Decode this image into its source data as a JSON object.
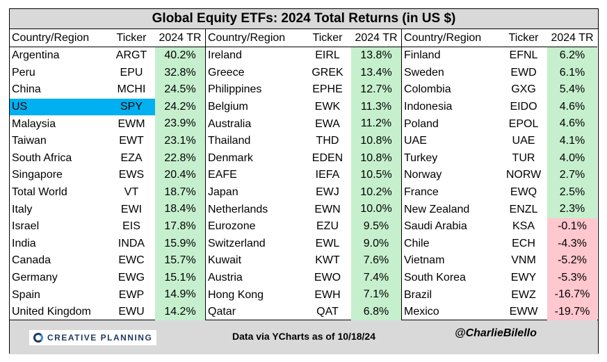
{
  "title": "Global Equity ETFs: 2024 Total Returns (in US $)",
  "headers": {
    "country": "Country/Region",
    "ticker": "Ticker",
    "tr": "2024 TR"
  },
  "colors": {
    "positive_fill": "#c6efce",
    "negative_fill": "#ffc7ce",
    "highlight": "#00b0f0",
    "header_fill": "#d9d9d9"
  },
  "highlight_ticker": "SPY",
  "chart_data": {
    "type": "table",
    "title": "Global Equity ETFs: 2024 Total Returns (in US $)",
    "columns": [
      "Country/Region",
      "Ticker",
      "2024 TR"
    ],
    "panels": [
      [
        {
          "country": "Argentina",
          "ticker": "ARGT",
          "tr": "40.2%"
        },
        {
          "country": "Peru",
          "ticker": "EPU",
          "tr": "32.8%"
        },
        {
          "country": "China",
          "ticker": "MCHI",
          "tr": "24.5%"
        },
        {
          "country": "US",
          "ticker": "SPY",
          "tr": "24.2%"
        },
        {
          "country": "Malaysia",
          "ticker": "EWM",
          "tr": "23.9%"
        },
        {
          "country": "Taiwan",
          "ticker": "EWT",
          "tr": "23.1%"
        },
        {
          "country": "South Africa",
          "ticker": "EZA",
          "tr": "22.8%"
        },
        {
          "country": "Singapore",
          "ticker": "EWS",
          "tr": "20.4%"
        },
        {
          "country": "Total World",
          "ticker": "VT",
          "tr": "18.7%"
        },
        {
          "country": "Italy",
          "ticker": "EWI",
          "tr": "18.4%"
        },
        {
          "country": "Israel",
          "ticker": "EIS",
          "tr": "17.8%"
        },
        {
          "country": "India",
          "ticker": "INDA",
          "tr": "15.9%"
        },
        {
          "country": "Canada",
          "ticker": "EWC",
          "tr": "15.7%"
        },
        {
          "country": "Germany",
          "ticker": "EWG",
          "tr": "15.1%"
        },
        {
          "country": "Spain",
          "ticker": "EWP",
          "tr": "14.9%"
        },
        {
          "country": "United Kingdom",
          "ticker": "EWU",
          "tr": "14.2%"
        }
      ],
      [
        {
          "country": "Ireland",
          "ticker": "EIRL",
          "tr": "13.8%"
        },
        {
          "country": "Greece",
          "ticker": "GREK",
          "tr": "13.4%"
        },
        {
          "country": "Philippines",
          "ticker": "EPHE",
          "tr": "12.7%"
        },
        {
          "country": "Belgium",
          "ticker": "EWK",
          "tr": "11.3%"
        },
        {
          "country": "Australia",
          "ticker": "EWA",
          "tr": "11.2%"
        },
        {
          "country": "Thailand",
          "ticker": "THD",
          "tr": "10.8%"
        },
        {
          "country": "Denmark",
          "ticker": "EDEN",
          "tr": "10.8%"
        },
        {
          "country": "EAFE",
          "ticker": "IEFA",
          "tr": "10.5%"
        },
        {
          "country": "Japan",
          "ticker": "EWJ",
          "tr": "10.2%"
        },
        {
          "country": "Netherlands",
          "ticker": "EWN",
          "tr": "10.0%"
        },
        {
          "country": "Eurozone",
          "ticker": "EZU",
          "tr": "9.5%"
        },
        {
          "country": "Switzerland",
          "ticker": "EWL",
          "tr": "9.0%"
        },
        {
          "country": "Kuwait",
          "ticker": "KWT",
          "tr": "7.6%"
        },
        {
          "country": "Austria",
          "ticker": "EWO",
          "tr": "7.4%"
        },
        {
          "country": "Hong Kong",
          "ticker": "EWH",
          "tr": "7.1%"
        },
        {
          "country": "Qatar",
          "ticker": "QAT",
          "tr": "6.8%"
        }
      ],
      [
        {
          "country": "Finland",
          "ticker": "EFNL",
          "tr": "6.2%"
        },
        {
          "country": "Sweden",
          "ticker": "EWD",
          "tr": "6.1%"
        },
        {
          "country": "Colombia",
          "ticker": "GXG",
          "tr": "5.4%"
        },
        {
          "country": "Indonesia",
          "ticker": "EIDO",
          "tr": "4.6%"
        },
        {
          "country": "Poland",
          "ticker": "EPOL",
          "tr": "4.6%"
        },
        {
          "country": "UAE",
          "ticker": "UAE",
          "tr": "4.1%"
        },
        {
          "country": "Turkey",
          "ticker": "TUR",
          "tr": "4.0%"
        },
        {
          "country": "Norway",
          "ticker": "NORW",
          "tr": "2.7%"
        },
        {
          "country": "France",
          "ticker": "EWQ",
          "tr": "2.5%"
        },
        {
          "country": "New Zealand",
          "ticker": "ENZL",
          "tr": "2.3%"
        },
        {
          "country": "Saudi Arabia",
          "ticker": "KSA",
          "tr": "-0.1%"
        },
        {
          "country": "Chile",
          "ticker": "ECH",
          "tr": "-4.3%"
        },
        {
          "country": "Vietnam",
          "ticker": "VNM",
          "tr": "-5.2%"
        },
        {
          "country": "South Korea",
          "ticker": "EWY",
          "tr": "-5.3%"
        },
        {
          "country": "Brazil",
          "ticker": "EWZ",
          "tr": "-16.7%"
        },
        {
          "country": "Mexico",
          "ticker": "EWW",
          "tr": "-19.7%"
        }
      ]
    ]
  },
  "footer": {
    "logo_text": "CREATIVE PLANNING",
    "source": "Data via YCharts as of 10/18/24",
    "handle": "@CharlieBilello"
  }
}
